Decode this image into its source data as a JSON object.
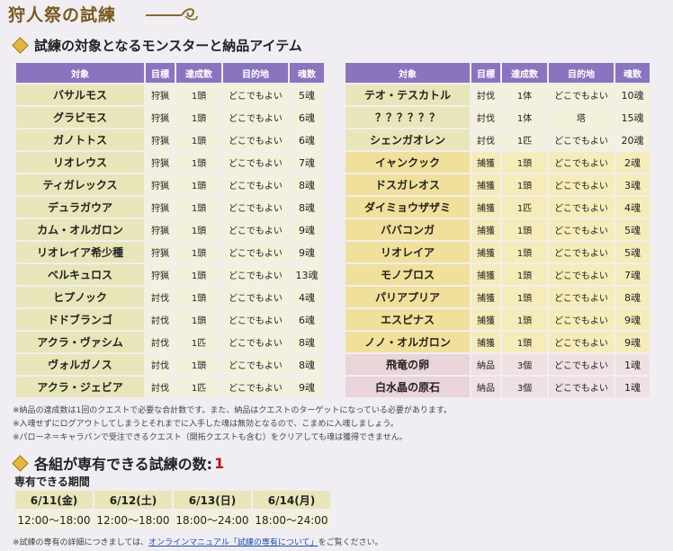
{
  "title": "狩人祭の試練",
  "section1": "試練の対象となるモンスターと納品アイテム",
  "headers": [
    "対象",
    "目標",
    "達成数",
    "目的地",
    "魂数"
  ],
  "left_rows": [
    {
      "name": "バサルモス",
      "goal": "狩猟",
      "count": "1頭",
      "dest": "どこでもよい",
      "souls": "5魂",
      "kind": "hunt"
    },
    {
      "name": "グラビモス",
      "goal": "狩猟",
      "count": "1頭",
      "dest": "どこでもよい",
      "souls": "6魂",
      "kind": "hunt"
    },
    {
      "name": "ガノトトス",
      "goal": "狩猟",
      "count": "1頭",
      "dest": "どこでもよい",
      "souls": "6魂",
      "kind": "hunt"
    },
    {
      "name": "リオレウス",
      "goal": "狩猟",
      "count": "1頭",
      "dest": "どこでもよい",
      "souls": "7魂",
      "kind": "hunt"
    },
    {
      "name": "ティガレックス",
      "goal": "狩猟",
      "count": "1頭",
      "dest": "どこでもよい",
      "souls": "8魂",
      "kind": "hunt"
    },
    {
      "name": "デュラガウア",
      "goal": "狩猟",
      "count": "1頭",
      "dest": "どこでもよい",
      "souls": "8魂",
      "kind": "hunt"
    },
    {
      "name": "カム・オルガロン",
      "goal": "狩猟",
      "count": "1頭",
      "dest": "どこでもよい",
      "souls": "9魂",
      "kind": "hunt"
    },
    {
      "name": "リオレイア希少種",
      "goal": "狩猟",
      "count": "1頭",
      "dest": "どこでもよい",
      "souls": "9魂",
      "kind": "hunt"
    },
    {
      "name": "ベルキュロス",
      "goal": "狩猟",
      "count": "1頭",
      "dest": "どこでもよい",
      "souls": "13魂",
      "kind": "hunt"
    },
    {
      "name": "ヒプノック",
      "goal": "討伐",
      "count": "1頭",
      "dest": "どこでもよい",
      "souls": "4魂",
      "kind": "hunt"
    },
    {
      "name": "ドドブランゴ",
      "goal": "討伐",
      "count": "1頭",
      "dest": "どこでもよい",
      "souls": "6魂",
      "kind": "hunt"
    },
    {
      "name": "アクラ・ヴァシム",
      "goal": "討伐",
      "count": "1匹",
      "dest": "どこでもよい",
      "souls": "8魂",
      "kind": "hunt"
    },
    {
      "name": "ヴォルガノス",
      "goal": "討伐",
      "count": "1頭",
      "dest": "どこでもよい",
      "souls": "8魂",
      "kind": "hunt"
    },
    {
      "name": "アクラ・ジェビア",
      "goal": "討伐",
      "count": "1匹",
      "dest": "どこでもよい",
      "souls": "9魂",
      "kind": "hunt"
    }
  ],
  "right_rows": [
    {
      "name": "テオ・テスカトル",
      "goal": "討伐",
      "count": "1体",
      "dest": "どこでもよい",
      "souls": "10魂",
      "kind": "hunt"
    },
    {
      "name": "？？？？？？",
      "goal": "討伐",
      "count": "1体",
      "dest": "塔",
      "souls": "15魂",
      "kind": "hunt"
    },
    {
      "name": "シェンガオレン",
      "goal": "討伐",
      "count": "1匹",
      "dest": "どこでもよい",
      "souls": "20魂",
      "kind": "hunt"
    },
    {
      "name": "イャンクック",
      "goal": "捕獲",
      "count": "1頭",
      "dest": "どこでもよい",
      "souls": "2魂",
      "kind": "cap"
    },
    {
      "name": "ドスガレオス",
      "goal": "捕獲",
      "count": "1頭",
      "dest": "どこでもよい",
      "souls": "3魂",
      "kind": "cap"
    },
    {
      "name": "ダイミョウザザミ",
      "goal": "捕獲",
      "count": "1匹",
      "dest": "どこでもよい",
      "souls": "4魂",
      "kind": "cap"
    },
    {
      "name": "ババコンガ",
      "goal": "捕獲",
      "count": "1頭",
      "dest": "どこでもよい",
      "souls": "5魂",
      "kind": "cap"
    },
    {
      "name": "リオレイア",
      "goal": "捕獲",
      "count": "1頭",
      "dest": "どこでもよい",
      "souls": "5魂",
      "kind": "cap"
    },
    {
      "name": "モノブロス",
      "goal": "捕獲",
      "count": "1頭",
      "dest": "どこでもよい",
      "souls": "7魂",
      "kind": "cap"
    },
    {
      "name": "パリアプリア",
      "goal": "捕獲",
      "count": "1頭",
      "dest": "どこでもよい",
      "souls": "8魂",
      "kind": "cap"
    },
    {
      "name": "エスピナス",
      "goal": "捕獲",
      "count": "1頭",
      "dest": "どこでもよい",
      "souls": "9魂",
      "kind": "cap"
    },
    {
      "name": "ノノ・オルガロン",
      "goal": "捕獲",
      "count": "1頭",
      "dest": "どこでもよい",
      "souls": "9魂",
      "kind": "cap"
    },
    {
      "name": "飛竜の卵",
      "goal": "納品",
      "count": "3個",
      "dest": "どこでもよい",
      "souls": "1魂",
      "kind": "item"
    },
    {
      "name": "白水晶の原石",
      "goal": "納品",
      "count": "3個",
      "dest": "どこでもよい",
      "souls": "1魂",
      "kind": "item"
    }
  ],
  "notes": [
    "※納品の達成数は1回のクエストで必要な合計数です。また、納品はクエストのターゲットになっている必要があります。",
    "※入魂せずにログアウトしてしまうとそれまでに入手した魂は無効となるので、こまめに入魂しましょう。",
    "※パローネ＝キャラバンで受注できるクエスト（開拓クエストも含む）をクリアしても魂は獲得できません。"
  ],
  "section2": {
    "label": "各組が専有できる試練の数:",
    "count": "1"
  },
  "period_label": "専有できる期間",
  "periods": [
    {
      "date": "6/11(金)",
      "time": "12:00〜18:00"
    },
    {
      "date": "6/12(土)",
      "time": "12:00〜18:00"
    },
    {
      "date": "6/13(日)",
      "time": "18:00〜24:00"
    },
    {
      "date": "6/14(月)",
      "time": "18:00〜24:00"
    }
  ],
  "footnote": {
    "prefix": "※試練の専有の詳細につきましては、",
    "link": "オンラインマニュアル「試練の専有について」",
    "suffix": "をご覧ください。"
  },
  "colors": {
    "header_bg": "#8a74c0",
    "name_bg": "#e8e6b8",
    "capture_bg": "#f6ecb9",
    "item_bg": "#efe0e4",
    "accent_red": "#c0141c",
    "title_gold": "#7a5a1e"
  }
}
